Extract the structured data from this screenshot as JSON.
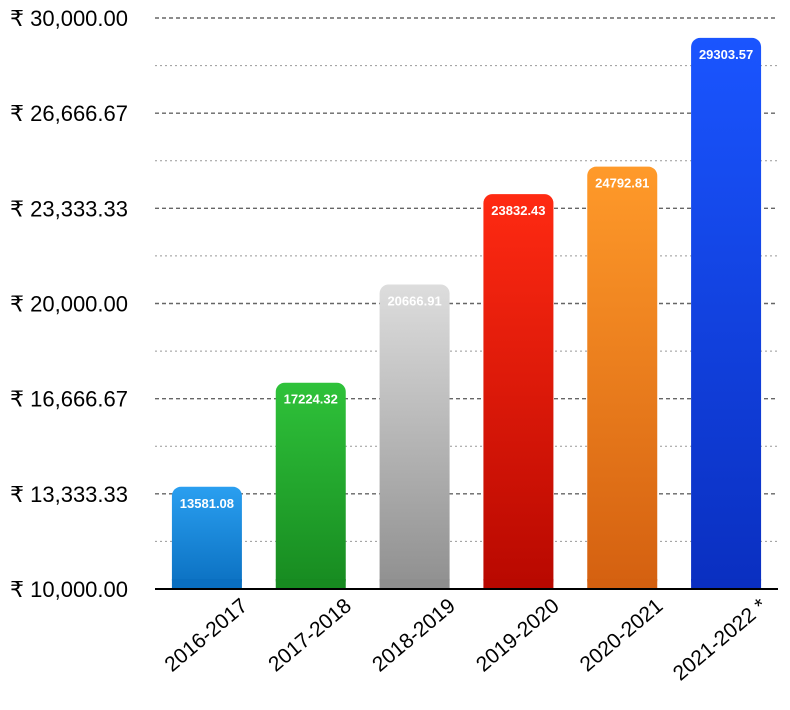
{
  "chart_data": {
    "type": "bar",
    "categories": [
      "2016-2017",
      "2017-2018",
      "2018-2019",
      "2019-2020",
      "2020-2021",
      "2021-2022 *"
    ],
    "values": [
      13581.08,
      17224.32,
      20666.91,
      23832.43,
      24792.81,
      29303.57
    ],
    "data_labels": [
      "13581.08",
      "17224.32",
      "20666.91",
      "23832.43",
      "24792.81",
      "29303.57"
    ],
    "ylim": [
      10000,
      30000
    ],
    "y_ticks": [
      10000,
      13333.33,
      16666.67,
      20000,
      23333.33,
      26666.67,
      30000
    ],
    "y_tick_labels": [
      "₹ 10,000.00",
      "₹ 13,333.33",
      "₹ 16,666.67",
      "₹ 20,000.00",
      "₹ 23,333.33",
      "₹ 26,666.67",
      "₹ 30,000.00"
    ],
    "grid": true,
    "bar_colors": [
      [
        "#2a9ff0",
        "#0a6fc0"
      ],
      [
        "#2fc23a",
        "#178a20"
      ],
      [
        "#dddddd",
        "#8f8f8f"
      ],
      [
        "#ff2a12",
        "#b80800"
      ],
      [
        "#ff9a2a",
        "#d46010"
      ],
      [
        "#1a55ff",
        "#0a2fc0"
      ]
    ]
  }
}
